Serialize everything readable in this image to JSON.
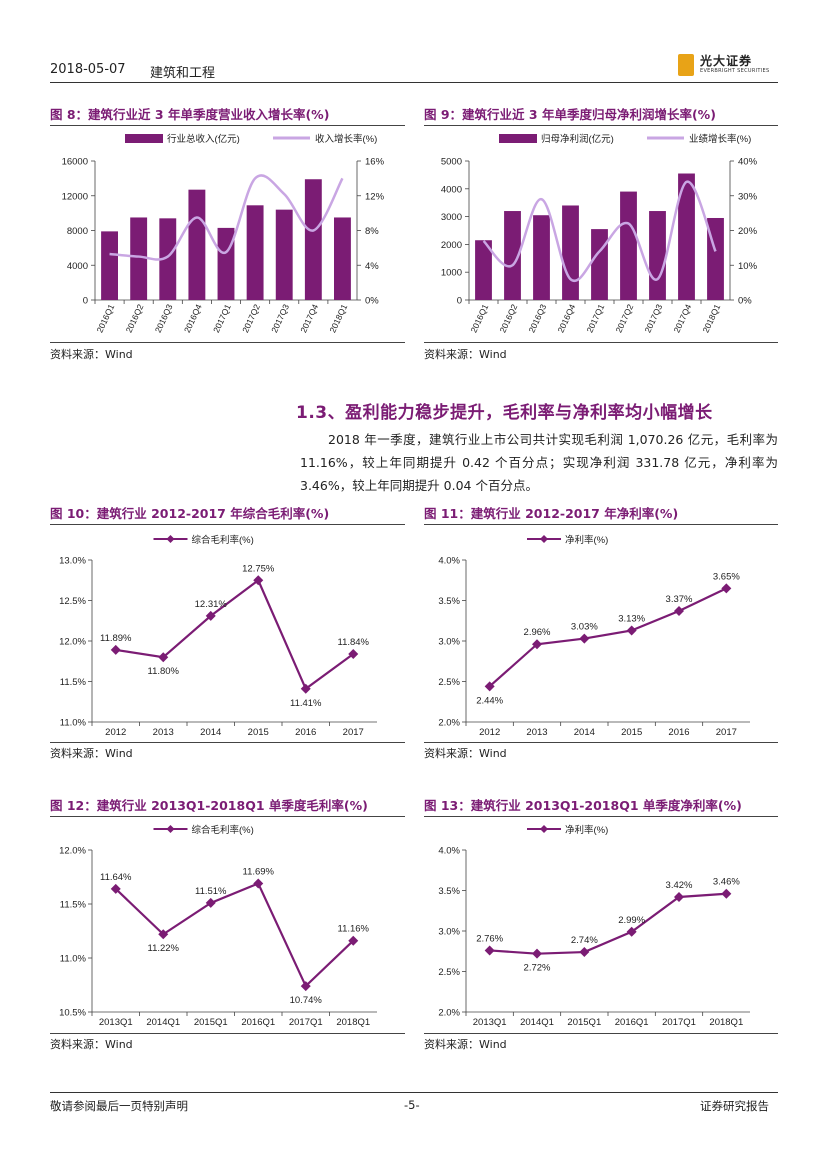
{
  "header": {
    "date": "2018-05-07",
    "industry": "建筑和工程",
    "logo_cn": "光大证券",
    "logo_en": "EVERBRIGHT SECURITIES"
  },
  "colors": {
    "purple": "#7b1c74",
    "lavender": "#c9a6e3"
  },
  "figures": {
    "fig8": {
      "title": "图 8：建筑行业近 3 年单季度营业收入增长率(%)",
      "source": "资料来源：Wind"
    },
    "fig9": {
      "title": "图 9：建筑行业近 3 年单季度归母净利润增长率(%)",
      "source": "资料来源：Wind"
    },
    "fig10": {
      "title": "图 10：建筑行业 2012-2017 年综合毛利率(%)",
      "source": "资料来源：Wind"
    },
    "fig11": {
      "title": "图 11：建筑行业 2012-2017 年净利率(%)",
      "source": "资料来源：Wind"
    },
    "fig12": {
      "title": "图 12：建筑行业 2013Q1-2018Q1 单季度毛利率(%)",
      "source": "资料来源：Wind"
    },
    "fig13": {
      "title": "图 13：建筑行业 2013Q1-2018Q1 单季度净利率(%)",
      "source": "资料来源：Wind"
    }
  },
  "section": {
    "heading": "1.3、盈利能力稳步提升，毛利率与净利率均小幅增长",
    "paragraph": "2018 年一季度，建筑行业上市公司共计实现毛利润 1,070.26 亿元，毛利率为 11.16%，较上年同期提升 0.42 个百分点；实现净利润 331.78 亿元，净利率为 3.46%，较上年同期提升 0.04 个百分点。"
  },
  "footer": {
    "left": "敬请参阅最后一页特别声明",
    "page": "-5-",
    "right": "证券研究报告"
  },
  "chart_data": [
    {
      "id": "fig8",
      "type": "bar+line",
      "categories": [
        "2016Q1",
        "2016Q2",
        "2016Q3",
        "2016Q4",
        "2017Q1",
        "2017Q2",
        "2017Q3",
        "2017Q4",
        "2018Q1"
      ],
      "series": [
        {
          "name": "行业总收入(亿元)",
          "type": "bar",
          "axis": "left",
          "values": [
            7900,
            9500,
            9400,
            12700,
            8300,
            10900,
            10400,
            13900,
            9500
          ]
        },
        {
          "name": "收入增长率(%)",
          "type": "line",
          "axis": "right",
          "values": [
            5.3,
            5.0,
            5.0,
            9.5,
            5.5,
            14.0,
            12.2,
            8.0,
            14.0
          ]
        }
      ],
      "y_left": {
        "min": 0,
        "max": 16000,
        "ticks": [
          "0",
          "4000",
          "8000",
          "12000",
          "16000"
        ]
      },
      "y_right": {
        "min": 0,
        "max": 16,
        "ticks": [
          "0%",
          "4%",
          "8%",
          "12%",
          "16%"
        ]
      }
    },
    {
      "id": "fig9",
      "type": "bar+line",
      "categories": [
        "2016Q1",
        "2016Q2",
        "2016Q3",
        "2016Q4",
        "2017Q1",
        "2017Q2",
        "2017Q3",
        "2017Q4",
        "2018Q1"
      ],
      "series": [
        {
          "name": "归母净利润(亿元)",
          "type": "bar",
          "axis": "left",
          "values": [
            2150,
            3200,
            3050,
            3400,
            2550,
            3900,
            3200,
            4550,
            2950
          ]
        },
        {
          "name": "业绩增长率(%)",
          "type": "line",
          "axis": "right",
          "values": [
            17,
            10,
            29,
            6,
            14,
            22,
            6,
            34,
            14
          ]
        }
      ],
      "y_left": {
        "min": 0,
        "max": 5000,
        "ticks": [
          "0",
          "1000",
          "2000",
          "3000",
          "4000",
          "5000"
        ]
      },
      "y_right": {
        "min": 0,
        "max": 40,
        "ticks": [
          "0%",
          "10%",
          "20%",
          "30%",
          "40%"
        ]
      }
    },
    {
      "id": "fig10",
      "type": "line",
      "legend": "综合毛利率(%)",
      "categories": [
        "2012",
        "2013",
        "2014",
        "2015",
        "2016",
        "2017"
      ],
      "values": [
        11.89,
        11.8,
        12.31,
        12.75,
        11.41,
        11.84
      ],
      "labels": [
        "11.89%",
        "11.80%",
        "12.31%",
        "12.75%",
        "11.41%",
        "11.84%"
      ],
      "ylim": [
        11.0,
        13.0
      ],
      "ticks": [
        "11.0%",
        "11.5%",
        "12.0%",
        "12.5%",
        "13.0%"
      ]
    },
    {
      "id": "fig11",
      "type": "line",
      "legend": "净利率(%)",
      "categories": [
        "2012",
        "2013",
        "2014",
        "2015",
        "2016",
        "2017"
      ],
      "values": [
        2.44,
        2.96,
        3.03,
        3.13,
        3.37,
        3.65
      ],
      "labels": [
        "2.44%",
        "2.96%",
        "3.03%",
        "3.13%",
        "3.37%",
        "3.65%"
      ],
      "ylim": [
        2.0,
        4.0
      ],
      "ticks": [
        "2.0%",
        "2.5%",
        "3.0%",
        "3.5%",
        "4.0%"
      ]
    },
    {
      "id": "fig12",
      "type": "line",
      "legend": "综合毛利率(%)",
      "categories": [
        "2013Q1",
        "2014Q1",
        "2015Q1",
        "2016Q1",
        "2017Q1",
        "2018Q1"
      ],
      "values": [
        11.64,
        11.22,
        11.51,
        11.69,
        10.74,
        11.16
      ],
      "labels": [
        "11.64%",
        "11.22%",
        "11.51%",
        "11.69%",
        "10.74%",
        "11.16%"
      ],
      "ylim": [
        10.5,
        12.0
      ],
      "ticks": [
        "10.5%",
        "11.0%",
        "11.5%",
        "12.0%"
      ]
    },
    {
      "id": "fig13",
      "type": "line",
      "legend": "净利率(%)",
      "categories": [
        "2013Q1",
        "2014Q1",
        "2015Q1",
        "2016Q1",
        "2017Q1",
        "2018Q1"
      ],
      "values": [
        2.76,
        2.72,
        2.74,
        2.99,
        3.42,
        3.46
      ],
      "labels": [
        "2.76%",
        "2.72%",
        "2.74%",
        "2.99%",
        "3.42%",
        "3.46%"
      ],
      "ylim": [
        2.0,
        4.0
      ],
      "ticks": [
        "2.0%",
        "2.5%",
        "3.0%",
        "3.5%",
        "4.0%"
      ]
    }
  ]
}
